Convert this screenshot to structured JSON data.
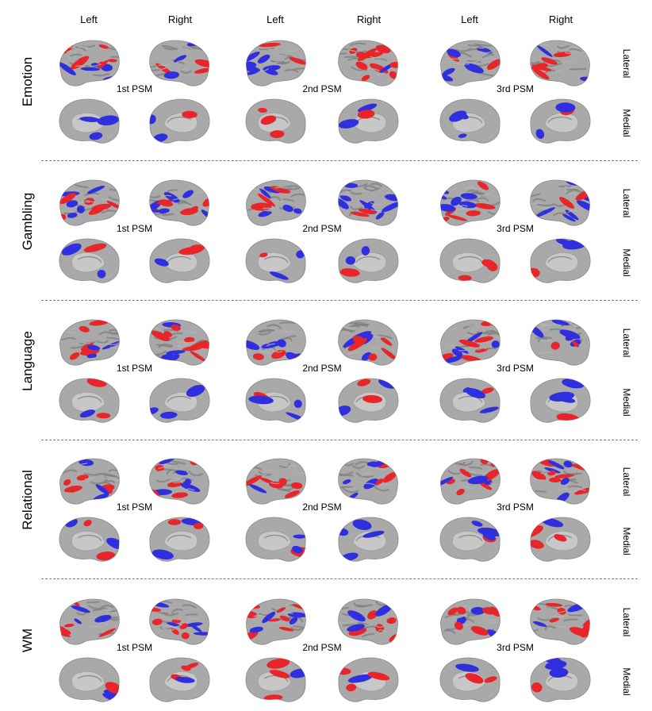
{
  "column_headers": [
    "Left",
    "Right",
    "Left",
    "Right",
    "Left",
    "Right"
  ],
  "view_labels": {
    "lateral": "Lateral",
    "medial": "Medial"
  },
  "psm_labels": [
    "1st PSM",
    "2nd PSM",
    "3rd PSM"
  ],
  "tasks": [
    {
      "name": "Emotion"
    },
    {
      "name": "Gambling"
    },
    {
      "name": "Language"
    },
    {
      "name": "Relational"
    },
    {
      "name": "WM"
    }
  ],
  "colors": {
    "positive": "#e8262a",
    "negative": "#2f2fe0",
    "cortex": "#a9a9a9",
    "medial_wall": "#c7c7c7"
  }
}
